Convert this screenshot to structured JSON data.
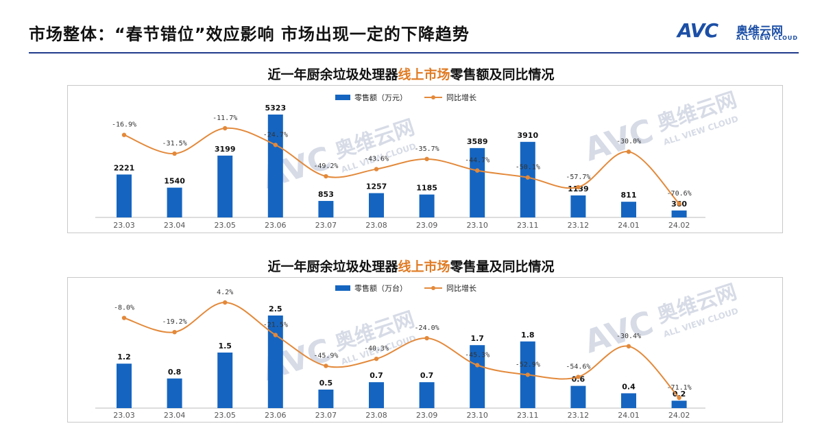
{
  "header": {
    "title": "市场整体：“春节错位”效应影响 市场出现一定的下降趋势"
  },
  "logo": {
    "brand": "AVC",
    "name_cn": "奥维云网",
    "name_en": "ALL VIEW CLOUD"
  },
  "watermark": {
    "brand": "AVC",
    "name_cn": "奥维云网",
    "name_en": "ALL VIEW CLOUD"
  },
  "colors": {
    "bar": "#1565c0",
    "line": "#e3893a",
    "highlight": "#e07b24"
  },
  "chart_data": [
    {
      "type": "bar",
      "title_parts": [
        "近一年厨余垃圾处理器",
        "线上市场",
        "零售额及同比情况"
      ],
      "categories": [
        "23.03",
        "23.04",
        "23.05",
        "23.06",
        "23.07",
        "23.08",
        "23.09",
        "23.10",
        "23.11",
        "23.12",
        "24.01",
        "24.02"
      ],
      "series": [
        {
          "name": "零售额（万元）",
          "type": "bar",
          "values": [
            2221,
            1540,
            3199,
            5323,
            853,
            1257,
            1185,
            3589,
            3910,
            1139,
            811,
            360
          ],
          "labels": [
            "2221",
            "1540",
            "3199",
            "5323",
            "853",
            "1257",
            "1185",
            "3589",
            "3910",
            "1139",
            "811",
            "360"
          ]
        },
        {
          "name": "同比增长",
          "type": "line",
          "values": [
            -16.9,
            -31.5,
            -11.7,
            -24.7,
            -49.2,
            -43.6,
            -35.7,
            -44.7,
            -50.1,
            -57.7,
            -30.0,
            -70.6
          ],
          "labels": [
            "-16.9%",
            "-31.5%",
            "-11.7%",
            "-24.7%",
            "-49.2%",
            "-43.6%",
            "-35.7%",
            "-44.7%",
            "-50.1%",
            "-57.7%",
            "-30.0%",
            "-70.6%"
          ]
        }
      ],
      "legend": "top-center",
      "grid": false
    },
    {
      "type": "bar",
      "title_parts": [
        "近一年厨余垃圾处理器",
        "线上市场",
        "零售量及同比情况"
      ],
      "categories": [
        "23.03",
        "23.04",
        "23.05",
        "23.06",
        "23.07",
        "23.08",
        "23.09",
        "23.10",
        "23.11",
        "23.12",
        "24.01",
        "24.02"
      ],
      "series": [
        {
          "name": "零售额（万台）",
          "type": "bar",
          "values": [
            1.2,
            0.8,
            1.5,
            2.5,
            0.5,
            0.7,
            0.7,
            1.7,
            1.8,
            0.6,
            0.4,
            0.2
          ],
          "labels": [
            "1.2",
            "0.8",
            "1.5",
            "2.5",
            "0.5",
            "0.7",
            "0.7",
            "1.7",
            "1.8",
            "0.6",
            "0.4",
            "0.2"
          ]
        },
        {
          "name": "同比增长",
          "type": "line",
          "values": [
            -8.0,
            -19.2,
            4.2,
            -21.5,
            -45.9,
            -40.3,
            -24.0,
            -45.3,
            -52.9,
            -54.6,
            -30.4,
            -71.1
          ],
          "labels": [
            "-8.0%",
            "-19.2%",
            "4.2%",
            "-21.5%",
            "-45.9%",
            "-40.3%",
            "-24.0%",
            "-45.3%",
            "-52.9%",
            "-54.6%",
            "-30.4%",
            "-71.1%"
          ]
        }
      ],
      "legend": "top-center",
      "grid": false
    }
  ]
}
